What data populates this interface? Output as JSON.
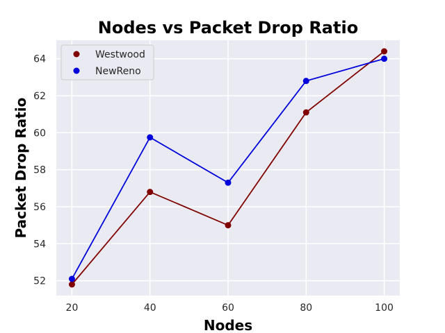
{
  "chart_data": {
    "type": "line",
    "title": "Nodes vs Packet Drop Ratio",
    "xlabel": "Nodes",
    "ylabel": "Packet Drop Ratio",
    "x": [
      20,
      40,
      60,
      80,
      100
    ],
    "xlim": [
      16,
      104
    ],
    "ylim": [
      51.2,
      65
    ],
    "xticks": [
      20,
      40,
      60,
      80,
      100
    ],
    "yticks": [
      52,
      54,
      56,
      58,
      60,
      62,
      64
    ],
    "grid": true,
    "legend_position": "top-left",
    "background_color": "#eaeaf2",
    "series": [
      {
        "name": "Westwood",
        "values": [
          51.8,
          56.8,
          55.0,
          61.1,
          64.4
        ],
        "color": "#800000"
      },
      {
        "name": "NewReno",
        "values": [
          52.1,
          59.75,
          57.3,
          62.8,
          64.0
        ],
        "color": "#0000dd"
      }
    ]
  }
}
